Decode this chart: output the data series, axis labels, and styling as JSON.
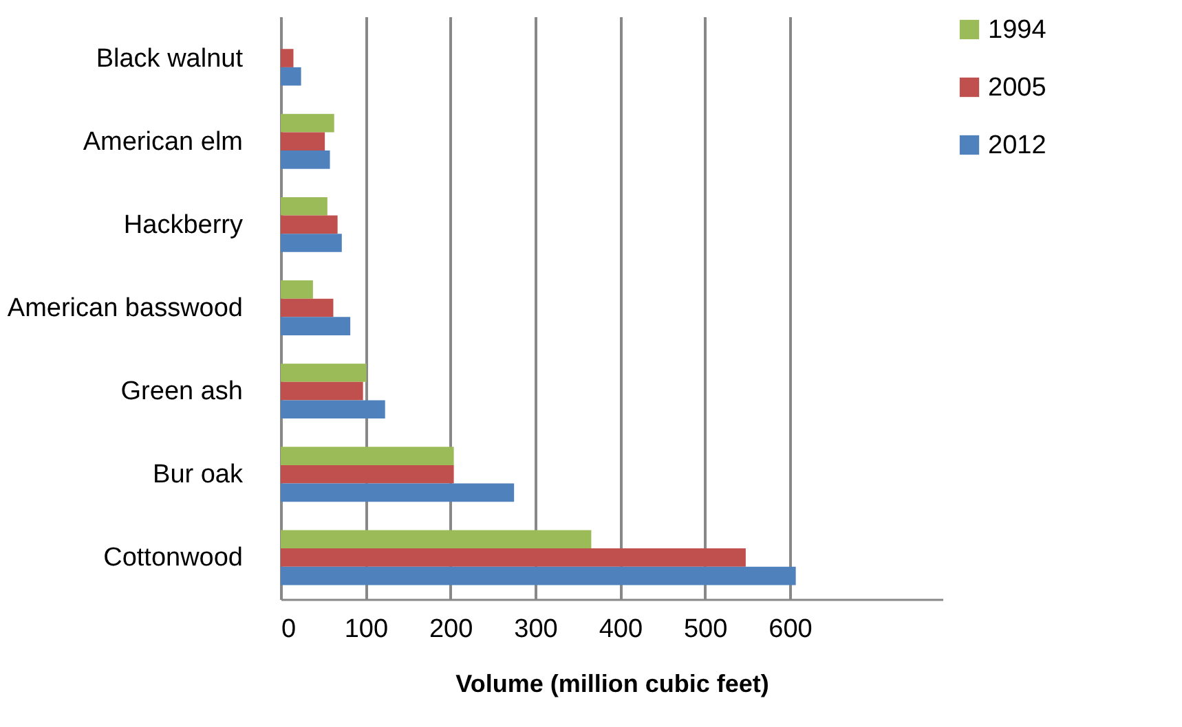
{
  "chart_data": {
    "type": "bar",
    "orientation": "horizontal",
    "xlabel": "Volume (million cubic feet)",
    "categories": [
      "Black walnut",
      "American elm",
      "Hackberry",
      "American basswood",
      "Green ash",
      "Bur oak",
      "Cottonwood"
    ],
    "series": [
      {
        "name": "1994",
        "color": "#9bbb59",
        "values": [
          null,
          63,
          55,
          38,
          101,
          204,
          366
        ]
      },
      {
        "name": "2005",
        "color": "#c0504d",
        "values": [
          15,
          52,
          67,
          62,
          97,
          204,
          548
        ]
      },
      {
        "name": "2012",
        "color": "#4f81bd",
        "values": [
          24,
          58,
          72,
          82,
          123,
          275,
          607
        ]
      }
    ],
    "xlim": [
      0,
      780
    ],
    "xticks": [
      0,
      100,
      200,
      300,
      400,
      500,
      600
    ],
    "grid": "x",
    "legend": "right"
  }
}
